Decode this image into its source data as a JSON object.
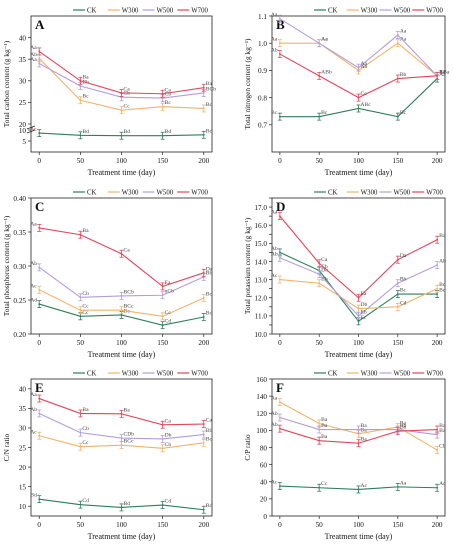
{
  "figure": {
    "legend_labels": [
      "CK",
      "W300",
      "W500",
      "W700"
    ],
    "series_colors": [
      "#2e7d5b",
      "#f0b36b",
      "#b39ddb",
      "#e0475a"
    ]
  },
  "chart_data": [
    {
      "type": "line",
      "panel": "A",
      "ylabel": "Total carbon content (g kg⁻¹)",
      "xlabel": "Treatment time (day)",
      "x": [
        0,
        50,
        100,
        150,
        200
      ],
      "ylim": [
        0,
        45
      ],
      "broken_axis": [
        10,
        20
      ],
      "yticks_visible": [
        5,
        10,
        20,
        25,
        30,
        35,
        40
      ],
      "series": [
        {
          "name": "CK",
          "values": [
            8.6,
            7.6,
            7.4,
            7.4,
            7.8
          ],
          "labels": [
            "Ac",
            "Bd",
            "Bd",
            "Bd",
            "Bd"
          ]
        },
        {
          "name": "W300",
          "values": [
            35.2,
            25.5,
            23.2,
            24.0,
            23.6
          ],
          "labels": [
            "Ab",
            "Bc",
            "Cc",
            "Bc",
            "Bc"
          ]
        },
        {
          "name": "W500",
          "values": [
            34.0,
            28.8,
            26.2,
            26.0,
            27.2
          ],
          "labels": [
            "Aa",
            "Bb",
            "Cb",
            "Cb",
            "BCb"
          ]
        },
        {
          "name": "W700",
          "values": [
            36.8,
            30.0,
            27.2,
            27.0,
            28.4
          ],
          "labels": [
            "Aa",
            "Ba",
            "Ca",
            "Ca",
            "Ba"
          ]
        }
      ]
    },
    {
      "type": "line",
      "panel": "B",
      "ylabel": "Total nitrogen content (g kg⁻¹)",
      "xlabel": "Treatment time (day)",
      "x": [
        0,
        50,
        100,
        150,
        200
      ],
      "ylim": [
        0.6,
        1.1
      ],
      "yticks": [
        0.7,
        0.8,
        0.9,
        1.0,
        1.1
      ],
      "series": [
        {
          "name": "CK",
          "values": [
            0.73,
            0.73,
            0.76,
            0.73,
            0.87
          ],
          "labels": [
            "Bc",
            "Bc",
            "ABc",
            "Bc",
            "Aa"
          ]
        },
        {
          "name": "W300",
          "values": [
            1.0,
            1.0,
            0.9,
            1.0,
            0.88
          ],
          "labels": [
            "Aa",
            "Aa",
            "Ab",
            "Aa",
            "Ba"
          ]
        },
        {
          "name": "W500",
          "values": [
            1.09,
            1.0,
            0.91,
            1.03,
            0.88
          ],
          "labels": [
            "Aa",
            "Aa",
            "Aa",
            "Aa",
            "Aa"
          ]
        },
        {
          "name": "W700",
          "values": [
            0.96,
            0.88,
            0.8,
            0.87,
            0.88
          ],
          "labels": [
            "Ab",
            "ABb",
            "Cc",
            "Bb",
            "ABa"
          ]
        }
      ]
    },
    {
      "type": "line",
      "panel": "C",
      "ylabel": "Total phosphorus content (g kg⁻¹)",
      "xlabel": "Treatment time (day)",
      "x": [
        0,
        50,
        100,
        150,
        200
      ],
      "ylim": [
        0.2,
        0.4
      ],
      "yticks": [
        0.2,
        0.25,
        0.3,
        0.35,
        0.4
      ],
      "series": [
        {
          "name": "CK",
          "values": [
            0.244,
            0.226,
            0.228,
            0.213,
            0.225
          ],
          "labels": [
            "Ad",
            "Cc",
            "Bc",
            "Cd",
            "Bd"
          ]
        },
        {
          "name": "W300",
          "values": [
            0.265,
            0.235,
            0.235,
            0.226,
            0.253
          ],
          "labels": [
            "Ac",
            "Cc",
            "BCc",
            "Cc",
            "Bc"
          ]
        },
        {
          "name": "W500",
          "values": [
            0.298,
            0.254,
            0.256,
            0.257,
            0.284
          ],
          "labels": [
            "Ab",
            "Cb",
            "BCb",
            "nCb",
            "Bb"
          ]
        },
        {
          "name": "W700",
          "values": [
            0.356,
            0.346,
            0.318,
            0.27,
            0.29
          ],
          "labels": [
            "Aa",
            "Ba",
            "Ca",
            "Ea",
            "Da"
          ]
        }
      ]
    },
    {
      "type": "line",
      "panel": "D",
      "ylabel": "Total potassium content (g kg⁻¹)",
      "xlabel": "Treatment time (day)",
      "x": [
        0,
        50,
        100,
        150,
        200
      ],
      "ylim": [
        10,
        17.5
      ],
      "yticks": [
        10,
        10.5,
        11,
        11.5,
        12,
        12.5,
        13,
        13.5,
        14,
        14.5,
        15,
        15.5,
        16,
        16.5,
        17,
        17.5
      ],
      "series": [
        {
          "name": "CK",
          "values": [
            14.5,
            13.5,
            10.7,
            12.2,
            12.2
          ],
          "labels": [
            "Ab",
            "Cb",
            "Ec",
            "Bc",
            "Bc"
          ]
        },
        {
          "name": "W300",
          "values": [
            13.0,
            12.8,
            11.4,
            11.5,
            12.5
          ],
          "labels": [
            "Ac",
            "Bb",
            "Db",
            "Cd",
            "Bc"
          ]
        },
        {
          "name": "W500",
          "values": [
            14.2,
            13.3,
            11.0,
            12.8,
            13.8
          ],
          "labels": [
            "Ab",
            "Db",
            "Eb",
            "Bb",
            "Ab"
          ]
        },
        {
          "name": "W700",
          "values": [
            16.5,
            13.9,
            12.0,
            14.1,
            15.2
          ],
          "labels": [
            "Aa",
            "Ca",
            "Ea",
            "Da",
            "Ba"
          ]
        }
      ]
    },
    {
      "type": "line",
      "panel": "E",
      "ylabel": "C/N ratio",
      "xlabel": "Treatment time (day)",
      "x": [
        0,
        50,
        100,
        150,
        200
      ],
      "ylim": [
        7.5,
        42.5
      ],
      "yticks": [
        10,
        15,
        20,
        25,
        30,
        35,
        40
      ],
      "series": [
        {
          "name": "CK",
          "values": [
            11.8,
            10.4,
            9.7,
            10.3,
            9.1
          ],
          "labels": [
            "Bd",
            "Cd",
            "Bd",
            "Cd",
            "Bd"
          ]
        },
        {
          "name": "W300",
          "values": [
            28.0,
            25.2,
            25.6,
            24.8,
            26.2
          ],
          "labels": [
            "Ac",
            "Cc",
            "BCc",
            "Cb",
            "Bc"
          ]
        },
        {
          "name": "W500",
          "values": [
            33.7,
            28.8,
            27.4,
            27.2,
            28.3
          ],
          "labels": [
            "Ab",
            "Cb",
            "CDb",
            "Db",
            "Bb"
          ]
        },
        {
          "name": "W700",
          "values": [
            37.5,
            33.7,
            33.6,
            30.8,
            31.0
          ],
          "labels": [
            "Aa",
            "Ba",
            "Ba",
            "Ca",
            "Ca"
          ]
        }
      ]
    },
    {
      "type": "line",
      "panel": "F",
      "ylabel": "C/P ratio",
      "xlabel": "Treatment time (day)",
      "x": [
        0,
        50,
        100,
        150,
        200
      ],
      "ylim": [
        0,
        160
      ],
      "yticks": [
        0,
        20,
        40,
        60,
        80,
        100,
        120,
        140,
        160
      ],
      "series": [
        {
          "name": "CK",
          "values": [
            35,
            33,
            31,
            34,
            33
          ],
          "labels": [
            "Ac",
            "Cc",
            "Ac",
            "Aa",
            "Ac"
          ]
        },
        {
          "name": "W300",
          "values": [
            133,
            108,
            96,
            104,
            77
          ],
          "labels": [
            "Aa",
            "Ba",
            "Ba",
            "Ba",
            "Cb"
          ]
        },
        {
          "name": "W500",
          "values": [
            115,
            101,
            101,
            101,
            95
          ],
          "labels": [
            "Ab",
            "Ba",
            "Ba",
            "Bb",
            "Ba"
          ]
        },
        {
          "name": "W700",
          "values": [
            102,
            88,
            85,
            99,
            101
          ],
          "labels": [
            "Ab",
            "Ba",
            "Ba",
            "Ba",
            "Ba"
          ]
        }
      ]
    }
  ]
}
